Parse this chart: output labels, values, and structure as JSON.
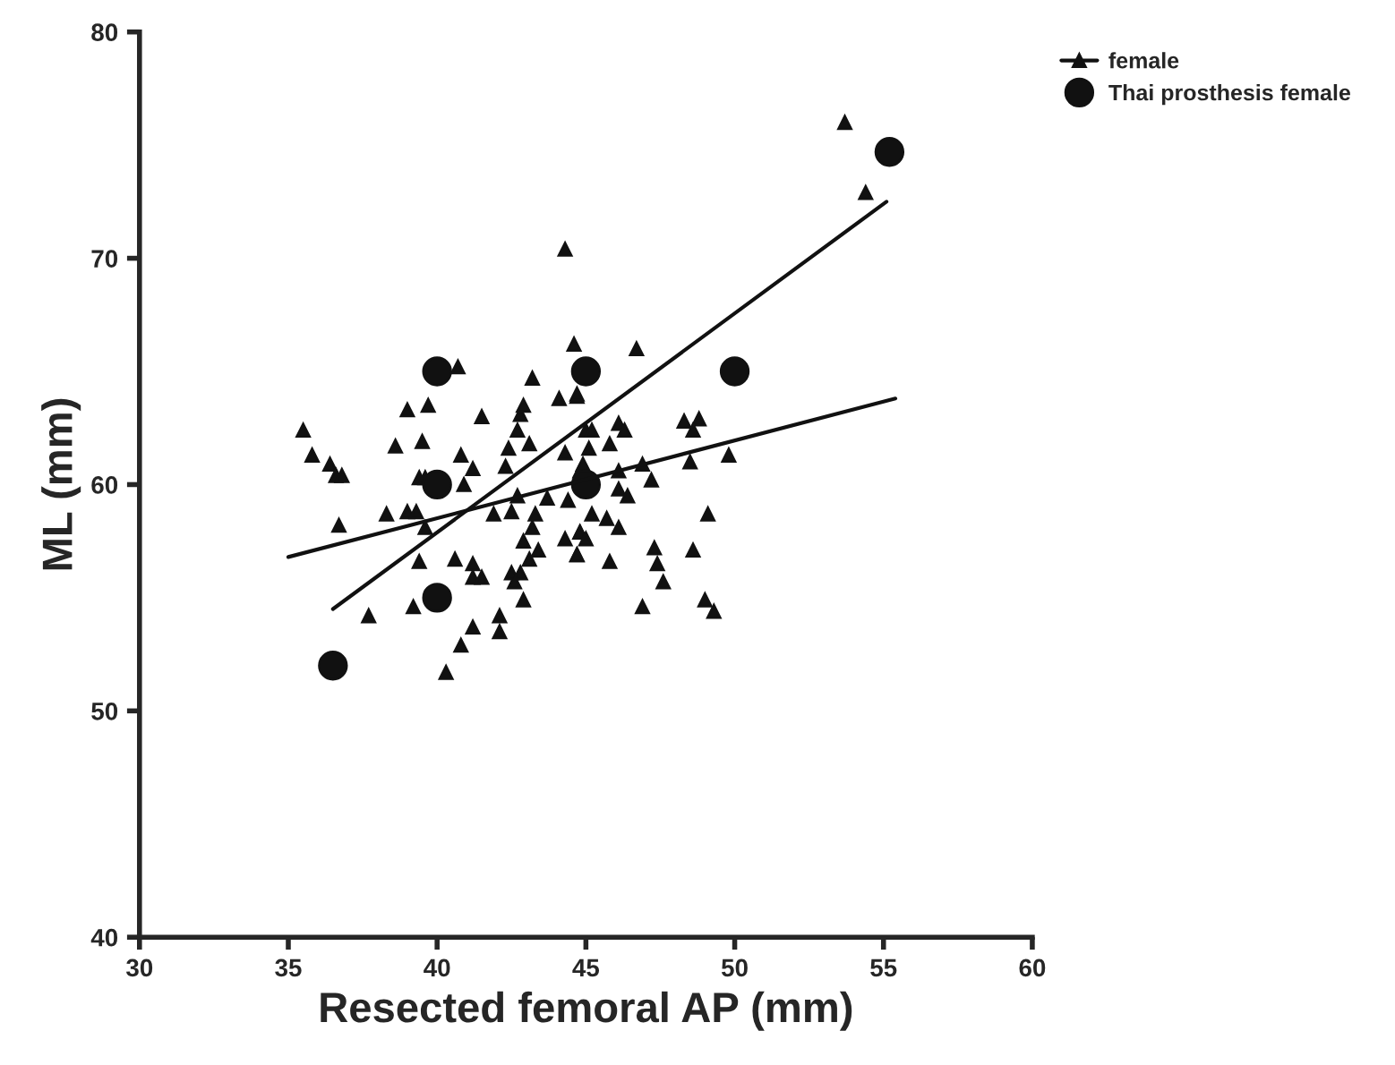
{
  "chart_data": {
    "type": "scatter",
    "xlabel": "Resected femoral AP (mm)",
    "ylabel": "ML (mm)",
    "xlim": [
      30,
      60
    ],
    "xticks": [
      30,
      35,
      40,
      45,
      50,
      55,
      60
    ],
    "ylim": [
      40,
      80
    ],
    "yticks": [
      40,
      50,
      60,
      70,
      80
    ],
    "grid": false,
    "legend": "top right",
    "series": [
      {
        "name": "female",
        "marker": "triangle",
        "color": "#111111",
        "x": [
          35.5,
          35.8,
          36.4,
          36.6,
          36.8,
          36.7,
          38.3,
          39.0,
          39.3,
          39.6,
          39.4,
          39.6,
          38.6,
          39.0,
          39.5,
          39.7,
          40.7,
          40.9,
          40.8,
          41.2,
          41.5,
          39.4,
          40.6,
          41.2,
          41.2,
          41.5,
          39.2,
          37.7,
          41.2,
          40.8,
          40.3,
          42.1,
          42.1,
          42.6,
          42.5,
          42.9,
          42.8,
          43.1,
          42.9,
          43.4,
          43.2,
          43.3,
          42.5,
          41.9,
          42.4,
          42.7,
          42.8,
          42.9,
          43.2,
          43.1,
          42.3,
          42.7,
          43.7,
          44.4,
          44.1,
          44.3,
          44.7,
          44.6,
          45.0,
          44.8,
          44.3,
          44.8,
          44.7,
          46.7,
          44.7,
          45.2,
          46.1,
          46.3,
          48.3,
          48.8,
          48.6,
          45.8,
          45.1,
          44.9,
          46.1,
          46.9,
          48.5,
          49.8,
          47.2,
          46.1,
          46.4,
          45.2,
          45.7,
          46.1,
          49.1,
          44.8,
          45.0,
          44.7,
          45.8,
          47.3,
          47.4,
          48.6,
          47.6,
          46.9,
          49.0,
          49.3,
          44.3,
          53.7,
          54.4
        ],
        "values": [
          62.4,
          61.3,
          60.9,
          60.4,
          60.4,
          58.2,
          58.7,
          58.8,
          58.8,
          58.1,
          60.3,
          60.3,
          61.7,
          63.3,
          61.9,
          63.5,
          65.2,
          60.0,
          61.3,
          60.7,
          63.0,
          56.6,
          56.7,
          56.5,
          55.9,
          55.9,
          54.6,
          54.2,
          53.7,
          52.9,
          51.7,
          54.2,
          53.5,
          55.7,
          56.1,
          54.9,
          56.1,
          56.7,
          57.5,
          57.1,
          58.1,
          58.7,
          58.8,
          58.7,
          61.6,
          62.4,
          63.1,
          63.5,
          64.7,
          61.8,
          60.8,
          59.5,
          59.4,
          59.3,
          63.8,
          61.4,
          63.9,
          66.2,
          62.4,
          60.6,
          57.6,
          57.9,
          56.9,
          66.0,
          64.0,
          62.4,
          62.7,
          62.4,
          62.8,
          62.9,
          62.4,
          61.8,
          61.6,
          60.9,
          60.6,
          60.9,
          61.0,
          61.3,
          60.2,
          59.8,
          59.5,
          58.7,
          58.5,
          58.1,
          58.7,
          57.9,
          57.6,
          56.9,
          56.6,
          57.2,
          56.5,
          57.1,
          55.7,
          54.6,
          54.9,
          54.4,
          70.4,
          76.0,
          72.9
        ]
      },
      {
        "name": "Thai prosthesis female",
        "marker": "circle",
        "color": "#111111",
        "x": [
          36.5,
          40,
          40,
          40,
          45,
          45,
          50,
          55.2
        ],
        "values": [
          52,
          55,
          60,
          65,
          60,
          65,
          65,
          74.7
        ]
      },
      {
        "type": "line",
        "color": "#111111",
        "x": [
          35,
          55.4
        ],
        "values": [
          56.8,
          63.8
        ]
      },
      {
        "type": "line",
        "color": "#111111",
        "x": [
          36.5,
          55.1
        ],
        "values": [
          54.5,
          72.5
        ]
      }
    ]
  }
}
